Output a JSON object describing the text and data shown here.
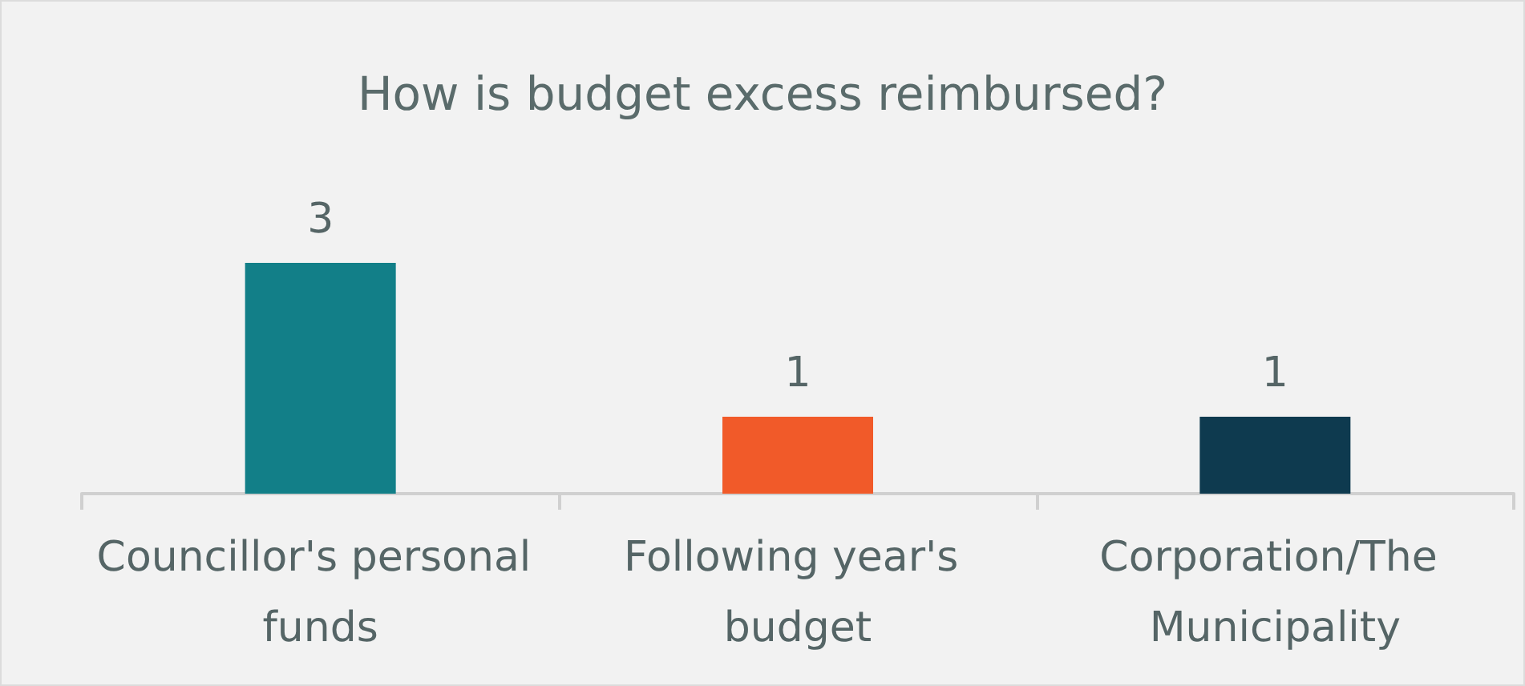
{
  "chart_data": {
    "type": "bar",
    "title": "How is budget excess reimbursed?",
    "categories": [
      "Councillor's personal funds",
      "Following year's budget",
      "Corporation/The Municipality"
    ],
    "values": [
      3,
      1,
      1
    ],
    "colors": [
      "#127f88",
      "#f15a29",
      "#0e3a4f"
    ],
    "data_labels": true
  }
}
